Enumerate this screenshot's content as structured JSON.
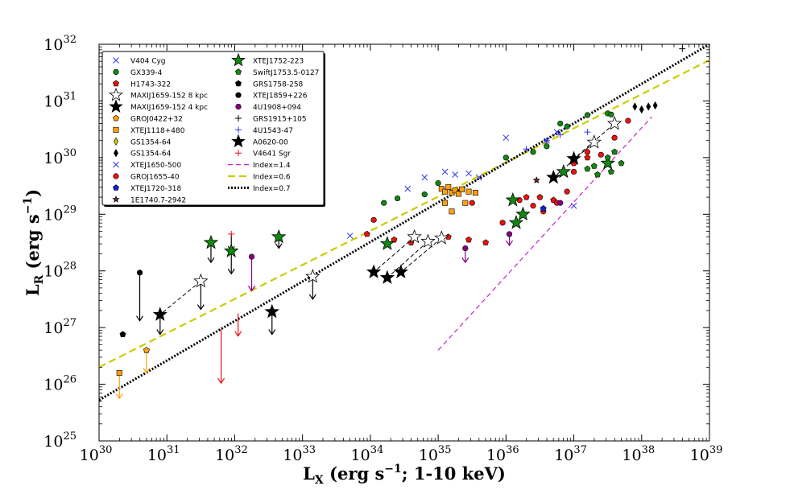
{
  "chart_data": {
    "type": "scatter",
    "title": "",
    "xlabel": {
      "main": "L",
      "sub": "X",
      "rest": " (erg s",
      "sup": "−1",
      "tail": "; 1-10 keV)"
    },
    "ylabel": {
      "main": "L",
      "sub": "R",
      "rest": " (erg s",
      "sup": "−1",
      "tail": ")"
    },
    "xscale": "log",
    "yscale": "log",
    "xlim_log": [
      30,
      39
    ],
    "ylim_log": [
      25,
      32
    ],
    "x_ticks": [
      {
        "base": "10",
        "exp": "30",
        "v": 30
      },
      {
        "base": "10",
        "exp": "31",
        "v": 31
      },
      {
        "base": "10",
        "exp": "32",
        "v": 32
      },
      {
        "base": "10",
        "exp": "33",
        "v": 33
      },
      {
        "base": "10",
        "exp": "34",
        "v": 34
      },
      {
        "base": "10",
        "exp": "35",
        "v": 35
      },
      {
        "base": "10",
        "exp": "36",
        "v": 36
      },
      {
        "base": "10",
        "exp": "37",
        "v": 37
      },
      {
        "base": "10",
        "exp": "38",
        "v": 38
      },
      {
        "base": "10",
        "exp": "39",
        "v": 39
      }
    ],
    "y_ticks": [
      {
        "base": "10",
        "exp": "25",
        "v": 25
      },
      {
        "base": "10",
        "exp": "26",
        "v": 26
      },
      {
        "base": "10",
        "exp": "27",
        "v": 27
      },
      {
        "base": "10",
        "exp": "28",
        "v": 28
      },
      {
        "base": "10",
        "exp": "29",
        "v": 29
      },
      {
        "base": "10",
        "exp": "30",
        "v": 30
      },
      {
        "base": "10",
        "exp": "31",
        "v": 31
      },
      {
        "base": "10",
        "exp": "32",
        "v": 32
      }
    ],
    "legend_position": "top-left",
    "legend": [
      {
        "label": "V404 Cyg",
        "marker": "x",
        "color": "#3333ee"
      },
      {
        "label": "GX339-4",
        "marker": "circle",
        "color": "#118811"
      },
      {
        "label": "H1743-322",
        "marker": "pentagon",
        "color": "#ee1111"
      },
      {
        "label": "MAXIJ1659-152 8 kpc",
        "marker": "star",
        "color": "#ffffff"
      },
      {
        "label": "MAXIJ1659-152 4 kpc",
        "marker": "star",
        "color": "#000000"
      },
      {
        "label": "GROJ0422+32",
        "marker": "pentagon",
        "color": "#ffa010"
      },
      {
        "label": "XTEJ1118+480",
        "marker": "square",
        "color": "#ffa010"
      },
      {
        "label": "GS1354-64",
        "marker": "diamond",
        "color": "#cccc00"
      },
      {
        "label": "GS1354-64",
        "marker": "diamond",
        "color": "#000000"
      },
      {
        "label": "XTEJ1650-500",
        "marker": "x",
        "color": "#3333ee"
      },
      {
        "label": "GROJ1655-40",
        "marker": "circle",
        "color": "#ee1111"
      },
      {
        "label": "XTEJ1720-318",
        "marker": "pentagon",
        "color": "#1122cc"
      },
      {
        "label": "1E1740.7-2942",
        "marker": "star",
        "color": "#992222"
      },
      {
        "label": "XTEJ1752-223",
        "marker": "star",
        "color": "#118811"
      },
      {
        "label": "SwiftJ1753.5-0127",
        "marker": "pentagon",
        "color": "#118811"
      },
      {
        "label": "GRS1758-258",
        "marker": "pentagon",
        "color": "#000000"
      },
      {
        "label": "XTEJ1859+226",
        "marker": "circle",
        "color": "#000000"
      },
      {
        "label": "4U1908+094",
        "marker": "circle",
        "color": "#880088"
      },
      {
        "label": "GRS1915+105",
        "marker": "plus",
        "color": "#000000"
      },
      {
        "label": "4U1543-47",
        "marker": "plus",
        "color": "#3333ee"
      },
      {
        "label": "A0620-00",
        "marker": "star",
        "color": "#000000"
      },
      {
        "label": "V4641 Sgr",
        "marker": "plus",
        "color": "#ee1111"
      },
      {
        "label": "Index=1.4",
        "marker": "line-dashed",
        "color": "#cc22cc"
      },
      {
        "label": "Index=0.6",
        "marker": "line-dashed-thick",
        "color": "#cccc00"
      },
      {
        "label": "Index=0.7",
        "marker": "line-dotted",
        "color": "#000000"
      }
    ],
    "lines": [
      {
        "name": "Index=1.4",
        "x": [
          35.0,
          38.15
        ],
        "y": [
          26.6,
          30.72
        ],
        "color": "#cc22cc",
        "dash": "6,4",
        "width": 1.2
      },
      {
        "name": "Index=0.6",
        "x": [
          30.0,
          39.0
        ],
        "y": [
          26.3,
          31.72
        ],
        "color": "#cccc00",
        "dash": "9,5",
        "width": 2.2
      },
      {
        "name": "Index=0.7",
        "x": [
          30.0,
          39.0
        ],
        "y": [
          25.72,
          32.0
        ],
        "color": "#000000",
        "dash": "2,2",
        "width": 3
      }
    ],
    "series": [
      {
        "name": "V404 Cyg",
        "marker": "x",
        "color": "#3333ee",
        "x": [
          33.7,
          34.55,
          34.8,
          35.1,
          35.25,
          35.45,
          35.6,
          36.0,
          36.6,
          36.75,
          37.0
        ],
        "y": [
          28.62,
          29.45,
          29.65,
          29.75,
          29.7,
          29.72,
          29.65,
          30.35,
          30.3,
          30.45,
          29.15
        ]
      },
      {
        "name": "GX339-4",
        "marker": "circle",
        "color": "#118811",
        "x": [
          34.2,
          34.4,
          34.8,
          35.0,
          36.0,
          36.4,
          36.6,
          36.8,
          36.9,
          37.2,
          37.5,
          37.55
        ],
        "y": [
          29.2,
          29.28,
          29.35,
          29.55,
          30.0,
          30.1,
          30.2,
          30.6,
          30.55,
          30.75,
          30.78,
          30.76
        ]
      },
      {
        "name": "H1743-322",
        "marker": "pentagon",
        "color": "#ee1111",
        "x": [
          33.95,
          34.35,
          34.6,
          35.15,
          35.45,
          35.7,
          36.3,
          36.5,
          36.7,
          37.0,
          37.2
        ],
        "y": [
          28.65,
          28.55,
          28.5,
          28.6,
          28.55,
          28.5,
          29.3,
          29.3,
          29.25,
          29.9,
          30.0
        ]
      },
      {
        "name": "MAXIJ1659-152 8 kpc",
        "marker": "star",
        "color": "#ffffff",
        "x": [
          31.5,
          33.15,
          34.65,
          34.85,
          35.05,
          37.3,
          37.6
        ],
        "y": [
          27.82,
          27.9,
          28.6,
          28.52,
          28.58,
          30.27,
          30.6
        ]
      },
      {
        "name": "MAXIJ1659-152 4 kpc",
        "marker": "star",
        "color": "#000000",
        "x": [
          30.9,
          32.55,
          34.05,
          34.25,
          34.45,
          36.7,
          37.0
        ],
        "y": [
          27.23,
          27.28,
          27.98,
          27.88,
          27.98,
          29.65,
          29.98
        ]
      },
      {
        "name": "GROJ0422+32",
        "marker": "pentagon",
        "color": "#ffa010",
        "x": [
          30.7
        ],
        "y": [
          26.6
        ]
      },
      {
        "name": "XTEJ1118+480",
        "marker": "square",
        "color": "#ffa010",
        "x": [
          30.3,
          35.05,
          35.1,
          35.15,
          35.2,
          35.25,
          35.3,
          35.35,
          35.45,
          35.55,
          35.4,
          35.2,
          35.1
        ],
        "y": [
          26.2,
          29.45,
          29.4,
          29.48,
          29.38,
          29.42,
          29.36,
          29.44,
          29.4,
          29.38,
          29.2,
          29.05,
          29.2
        ]
      },
      {
        "name": "GS1354-64",
        "marker": "diamond",
        "color": "#000000",
        "x": [
          37.9,
          38.0,
          38.1,
          38.2
        ],
        "y": [
          30.9,
          30.85,
          30.9,
          30.92
        ]
      },
      {
        "name": "GROJ1655-40",
        "marker": "circle",
        "color": "#ee1111",
        "x": [
          34.05,
          35.5,
          35.95,
          36.2,
          36.4,
          36.55,
          36.75,
          36.9,
          37.0,
          37.2,
          37.4,
          37.6,
          37.8
        ],
        "y": [
          28.9,
          29.2,
          28.85,
          29.25,
          29.15,
          29.05,
          29.2,
          29.4,
          29.75,
          30.1,
          30.05,
          30.35,
          30.65
        ]
      },
      {
        "name": "XTEJ1720-318",
        "marker": "pentagon",
        "color": "#1122cc",
        "x": [
          36.55
        ],
        "y": [
          29.1
        ]
      },
      {
        "name": "1E1740.7-2942",
        "marker": "star",
        "color": "#992222",
        "x": [
          36.45
        ],
        "y": [
          29.6
        ]
      },
      {
        "name": "XTEJ1752-223",
        "marker": "star",
        "color": "#118811",
        "x": [
          31.65,
          31.95,
          32.65,
          34.25,
          36.1,
          36.25,
          36.15,
          36.85,
          37.5
        ],
        "y": [
          28.5,
          28.35,
          28.6,
          28.48,
          29.25,
          29.0,
          28.85,
          29.75,
          29.9
        ]
      },
      {
        "name": "SwiftJ1753.5-0127",
        "marker": "pentagon",
        "color": "#118811",
        "x": [
          37.2,
          37.3,
          37.35,
          37.5,
          37.55,
          37.6,
          37.7
        ],
        "y": [
          29.8,
          29.85,
          29.7,
          30.0,
          29.75,
          30.1,
          29.9
        ]
      },
      {
        "name": "GRS1758-258",
        "marker": "pentagon",
        "color": "#000000",
        "x": [
          30.35
        ],
        "y": [
          26.88
        ]
      },
      {
        "name": "XTEJ1859+226",
        "marker": "circle",
        "color": "#000000",
        "x": [
          30.6
        ],
        "y": [
          27.97
        ]
      },
      {
        "name": "4U1908+094",
        "marker": "circle",
        "color": "#880088",
        "x": [
          32.25,
          35.4,
          36.05,
          36.8
        ],
        "y": [
          28.25,
          28.4,
          28.65,
          29.2
        ]
      },
      {
        "name": "GRS1915+105",
        "marker": "plus",
        "color": "#000000",
        "x": [
          38.6
        ],
        "y": [
          31.92
        ]
      },
      {
        "name": "4U1543-47",
        "marker": "plus",
        "color": "#3333ee",
        "x": [
          36.3,
          36.6,
          36.8,
          37.2
        ],
        "y": [
          30.15,
          30.3,
          30.4,
          30.45
        ]
      },
      {
        "name": "V4641 Sgr",
        "marker": "plus",
        "color": "#ee1111",
        "x": [
          31.95
        ],
        "y": [
          28.65
        ]
      }
    ],
    "upper_limits": [
      {
        "x": 30.3,
        "y": 26.2,
        "len": 0.45,
        "color": "#ffa010"
      },
      {
        "x": 30.7,
        "y": 26.6,
        "len": 0.4,
        "color": "#ffa010"
      },
      {
        "x": 30.6,
        "y": 27.97,
        "len": 0.85,
        "color": "#000000"
      },
      {
        "x": 30.9,
        "y": 27.23,
        "len": 0.35,
        "color": "#000000"
      },
      {
        "x": 31.5,
        "y": 27.82,
        "len": 0.5,
        "color": "#000000"
      },
      {
        "x": 31.65,
        "y": 28.5,
        "len": 0.35,
        "color": "#000000"
      },
      {
        "x": 31.95,
        "y": 28.35,
        "len": 0.4,
        "color": "#000000"
      },
      {
        "x": 31.95,
        "y": 28.65,
        "len": 0.3,
        "color": "#000000"
      },
      {
        "x": 31.8,
        "y": 26.97,
        "len": 0.95,
        "color": "#ee1111"
      },
      {
        "x": 32.05,
        "y": 27.25,
        "len": 0.4,
        "color": "#ee1111"
      },
      {
        "x": 32.25,
        "y": 28.25,
        "len": 0.6,
        "color": "#880088"
      },
      {
        "x": 32.55,
        "y": 27.28,
        "len": 0.4,
        "color": "#000000"
      },
      {
        "x": 32.65,
        "y": 28.6,
        "len": 0.2,
        "color": "#000000"
      },
      {
        "x": 33.15,
        "y": 27.9,
        "len": 0.4,
        "color": "#000000"
      },
      {
        "x": 35.4,
        "y": 28.4,
        "len": 0.25,
        "color": "#880088"
      },
      {
        "x": 36.05,
        "y": 28.65,
        "len": 0.2,
        "color": "#880088"
      }
    ],
    "connectors": [
      {
        "x": [
          31.5,
          30.9
        ],
        "y": [
          27.82,
          27.23
        ]
      },
      {
        "x": [
          34.65,
          34.05
        ],
        "y": [
          28.6,
          27.98
        ]
      },
      {
        "x": [
          34.85,
          34.25
        ],
        "y": [
          28.52,
          27.88
        ]
      },
      {
        "x": [
          35.05,
          34.45
        ],
        "y": [
          28.58,
          27.98
        ]
      },
      {
        "x": [
          37.3,
          36.7
        ],
        "y": [
          30.27,
          29.65
        ]
      },
      {
        "x": [
          37.6,
          37.0
        ],
        "y": [
          30.6,
          29.98
        ]
      }
    ]
  }
}
